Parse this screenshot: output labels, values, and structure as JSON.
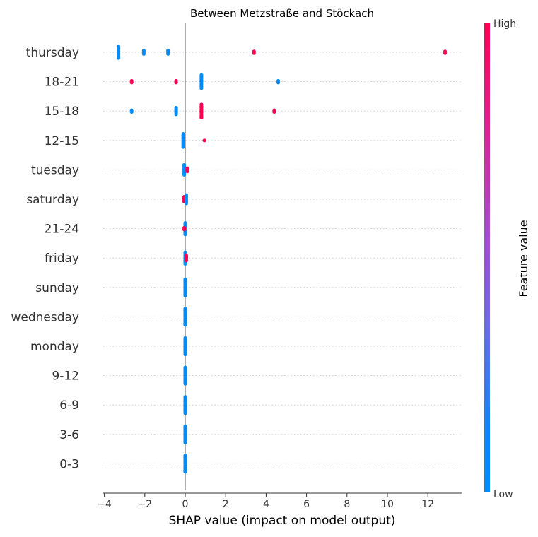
{
  "chart_data": {
    "type": "scatter",
    "subtype": "shap-summary-beeswarm",
    "title": "Between Metzstraße and Stöckach",
    "xlabel": "SHAP value (impact on model output)",
    "xlim": [
      -4.2,
      13.6
    ],
    "x_ticks": [
      "−4",
      "−2",
      "0",
      "2",
      "4",
      "6",
      "8",
      "10",
      "12"
    ],
    "x_tick_values": [
      -4,
      -2,
      0,
      2,
      4,
      6,
      8,
      10,
      12
    ],
    "colorbar": {
      "label": "Feature value",
      "high_label": "High",
      "low_label": "Low",
      "high_color": "#ff0052",
      "low_color": "#008bfb"
    },
    "features": [
      {
        "name": "thursday",
        "clusters": [
          {
            "x": -3.3,
            "value": 0,
            "count": 8
          },
          {
            "x": -2.05,
            "value": 0,
            "count": 3
          },
          {
            "x": -0.85,
            "value": 0,
            "count": 3
          },
          {
            "x": 3.4,
            "value": 1,
            "count": 2
          },
          {
            "x": 12.85,
            "value": 1,
            "count": 2
          }
        ]
      },
      {
        "name": "18-21",
        "clusters": [
          {
            "x": -2.65,
            "value": 1,
            "count": 2
          },
          {
            "x": -0.45,
            "value": 1,
            "count": 2
          },
          {
            "x": 0.8,
            "value": 0,
            "count": 9
          },
          {
            "x": 4.6,
            "value": 0,
            "count": 2
          }
        ]
      },
      {
        "name": "15-18",
        "clusters": [
          {
            "x": -2.65,
            "value": 0,
            "count": 2
          },
          {
            "x": -0.45,
            "value": 0,
            "count": 5
          },
          {
            "x": 0.8,
            "value": 1,
            "count": 9
          },
          {
            "x": 4.4,
            "value": 1,
            "count": 2
          }
        ]
      },
      {
        "name": "12-15",
        "clusters": [
          {
            "x": -0.1,
            "value": 0,
            "count": 9
          },
          {
            "x": 0.95,
            "value": 1,
            "count": 1
          }
        ]
      },
      {
        "name": "tuesday",
        "clusters": [
          {
            "x": -0.05,
            "value": 0,
            "count": 7
          },
          {
            "x": 0.1,
            "value": 1,
            "count": 3
          }
        ]
      },
      {
        "name": "saturday",
        "clusters": [
          {
            "x": -0.05,
            "value": 1,
            "count": 4
          },
          {
            "x": 0.05,
            "value": 0,
            "count": 6
          }
        ]
      },
      {
        "name": "21-24",
        "clusters": [
          {
            "x": 0.0,
            "value": 0,
            "count": 8
          },
          {
            "x": -0.05,
            "value": 1,
            "count": 2
          }
        ]
      },
      {
        "name": "friday",
        "clusters": [
          {
            "x": 0.0,
            "value": 0,
            "count": 8
          },
          {
            "x": 0.05,
            "value": 1,
            "count": 4
          }
        ]
      },
      {
        "name": "sunday",
        "clusters": [
          {
            "x": 0.0,
            "value": 0,
            "count": 11
          }
        ]
      },
      {
        "name": "wednesday",
        "clusters": [
          {
            "x": 0.0,
            "value": 0,
            "count": 11
          }
        ]
      },
      {
        "name": "monday",
        "clusters": [
          {
            "x": 0.0,
            "value": 0,
            "count": 11
          }
        ]
      },
      {
        "name": "9-12",
        "clusters": [
          {
            "x": 0.0,
            "value": 0,
            "count": 11
          }
        ]
      },
      {
        "name": "6-9",
        "clusters": [
          {
            "x": 0.0,
            "value": 0,
            "count": 11
          }
        ]
      },
      {
        "name": "3-6",
        "clusters": [
          {
            "x": 0.0,
            "value": 0,
            "count": 11
          }
        ]
      },
      {
        "name": "0-3",
        "clusters": [
          {
            "x": 0.0,
            "value": 0,
            "count": 11
          }
        ]
      }
    ]
  }
}
